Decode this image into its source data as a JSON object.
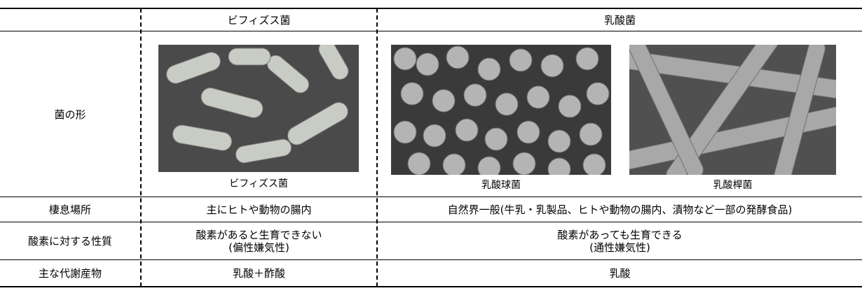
{
  "table": {
    "header": [
      "ビフィズス菌",
      "乳酸菌"
    ],
    "shape_row": {
      "label": "菌の形",
      "captions": [
        "ビフィズス菌",
        "乳酸球菌",
        "乳酸桿菌"
      ]
    },
    "rows": [
      {
        "label": "棲息場所",
        "cells": [
          [
            "主にヒトや動物の腸内"
          ],
          [
            "自然界一般(牛乳・乳製品、ヒトや動物の腸内、漬物など一部の発酵食品)"
          ]
        ]
      },
      {
        "label": "酸素に対する性質",
        "cells": [
          [
            "酸素があると生育できない",
            "(偏性嫌気性)"
          ],
          [
            "酸素があっても生育できる",
            "(通性嫌気性)"
          ]
        ]
      },
      {
        "label": "主な代謝産物",
        "cells": [
          [
            "乳酸＋酢酸"
          ],
          [
            "乳酸"
          ]
        ]
      }
    ]
  }
}
